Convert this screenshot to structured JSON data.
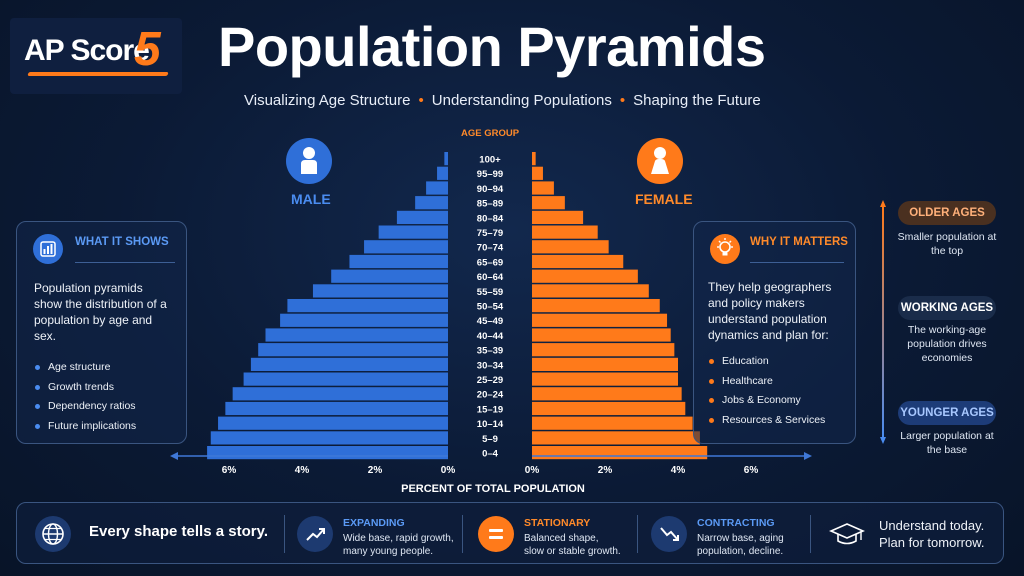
{
  "header": {
    "logo_text": "AP Score",
    "logo_number": "5",
    "title": "Population Pyramids",
    "subtitle_parts": [
      "Visualizing Age Structure",
      "Understanding Populations",
      "Shaping the Future"
    ]
  },
  "labels": {
    "male": "MALE",
    "female": "FEMALE",
    "male_icon": "male-person-icon",
    "female_icon": "female-person-icon"
  },
  "chart_data": {
    "type": "bar",
    "orientation": "horizontal-pyramid",
    "categories_header": "AGE GROUP",
    "categories": [
      "100+",
      "95–99",
      "90–94",
      "85–89",
      "80–84",
      "75–79",
      "70–74",
      "65–69",
      "60–64",
      "55–59",
      "50–54",
      "45–49",
      "40–44",
      "35–39",
      "30–34",
      "25–29",
      "20–24",
      "15–19",
      "10–14",
      "5–9",
      "0–4"
    ],
    "series": [
      {
        "name": "MALE",
        "color": "#2f6fd8",
        "values": [
          0.1,
          0.3,
          0.6,
          0.9,
          1.4,
          1.9,
          2.3,
          2.7,
          3.2,
          3.7,
          4.4,
          4.6,
          5.0,
          5.2,
          5.4,
          5.6,
          5.9,
          6.1,
          6.3,
          6.5,
          6.6
        ]
      },
      {
        "name": "FEMALE",
        "color": "#ff7a1a",
        "values": [
          0.1,
          0.3,
          0.6,
          0.9,
          1.4,
          1.8,
          2.1,
          2.5,
          2.9,
          3.2,
          3.5,
          3.7,
          3.8,
          3.9,
          4.0,
          4.0,
          4.1,
          4.2,
          4.4,
          4.6,
          4.8
        ]
      }
    ],
    "x_ticks_male": [
      "6%",
      "4%",
      "2%",
      "0%"
    ],
    "x_ticks_female": [
      "0%",
      "2%",
      "4%",
      "6%"
    ],
    "xlabel": "PERCENT OF TOTAL POPULATION",
    "xlim": [
      0,
      8
    ]
  },
  "what_it_shows": {
    "heading": "WHAT IT SHOWS",
    "icon": "bar-chart-icon",
    "body": "Population pyramids show the distribution of a population by age and sex.",
    "bullets": [
      "Age structure",
      "Growth trends",
      "Dependency ratios",
      "Future implications"
    ]
  },
  "why_it_matters": {
    "heading": "WHY IT MATTERS",
    "icon": "lightbulb-icon",
    "body": "They help geographers and policy makers understand population dynamics and plan for:",
    "bullets": [
      "Education",
      "Healthcare",
      "Jobs & Economy",
      "Resources & Services"
    ]
  },
  "age_scale": {
    "older": {
      "label": "OLDER AGES",
      "text": "Smaller population at the top"
    },
    "working": {
      "label": "WORKING AGES",
      "text": "The working-age population drives economies"
    },
    "younger": {
      "label": "YOUNGER AGES",
      "text": "Larger population at the base"
    }
  },
  "footer": {
    "story": "Every shape tells a story.",
    "expanding": {
      "title": "EXPANDING",
      "line1": "Wide base, rapid growth,",
      "line2": "many young people."
    },
    "stationary": {
      "title": "STATIONARY",
      "line1": "Balanced shape,",
      "line2": "slow or stable growth."
    },
    "contracting": {
      "title": "CONTRACTING",
      "line1": "Narrow base, aging",
      "line2": "population, decline."
    },
    "closing_line1": "Understand today.",
    "closing_line2": "Plan for tomorrow."
  },
  "colors": {
    "accent_orange": "#ff7a1a",
    "accent_blue": "#2f6fd8",
    "background": "#0b1a35"
  }
}
